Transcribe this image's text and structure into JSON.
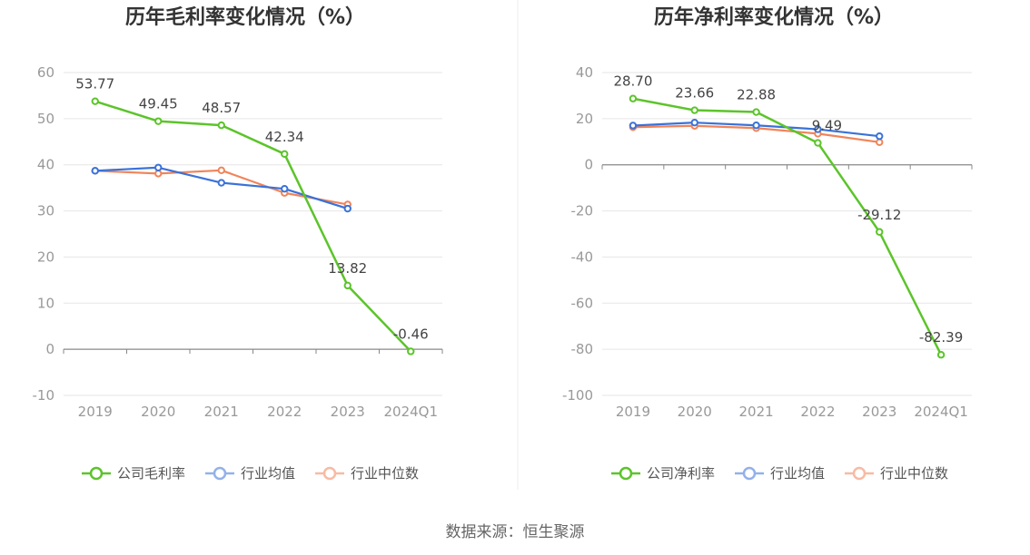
{
  "source": "数据来源：恒生聚源",
  "chart_data": [
    {
      "type": "line",
      "title": "历年毛利率变化情况（%）",
      "categories": [
        "2019",
        "2020",
        "2021",
        "2022",
        "2023",
        "2024Q1"
      ],
      "ylim": [
        -10,
        60
      ],
      "yticks": [
        60,
        50,
        40,
        30,
        20,
        10,
        0,
        -10
      ],
      "grid": true,
      "legend": "bottom",
      "series": [
        {
          "name": "公司毛利率",
          "color": "#5cc42a",
          "values": [
            53.77,
            49.45,
            48.57,
            42.34,
            13.82,
            -0.46
          ],
          "labels": [
            "53.77",
            "49.45",
            "48.57",
            "42.34",
            "13.82",
            "-0.46"
          ]
        },
        {
          "name": "行业均值",
          "color": "#3a72d8",
          "values": [
            38.7,
            39.4,
            36.1,
            34.8,
            30.5,
            null
          ]
        },
        {
          "name": "行业中位数",
          "color": "#f0845a",
          "values": [
            38.7,
            38.1,
            38.8,
            33.9,
            31.4,
            null
          ]
        }
      ]
    },
    {
      "type": "line",
      "title": "历年净利率变化情况（%）",
      "categories": [
        "2019",
        "2020",
        "2021",
        "2022",
        "2023",
        "2024Q1"
      ],
      "ylim": [
        -100,
        40
      ],
      "yticks": [
        40,
        20,
        0,
        -20,
        -40,
        -60,
        -80,
        -100
      ],
      "grid": true,
      "legend": "bottom",
      "series": [
        {
          "name": "公司净利率",
          "color": "#5cc42a",
          "values": [
            28.7,
            23.66,
            22.88,
            9.49,
            -29.12,
            -82.39
          ],
          "labels": [
            "28.70",
            "23.66",
            "22.88",
            "9.49",
            "-29.12",
            "-82.39"
          ]
        },
        {
          "name": "行业均值",
          "color": "#3a72d8",
          "values": [
            17.0,
            18.3,
            17.1,
            15.4,
            12.4,
            null
          ]
        },
        {
          "name": "行业中位数",
          "color": "#f0845a",
          "values": [
            16.3,
            16.9,
            15.9,
            13.5,
            9.8,
            null
          ]
        }
      ]
    }
  ]
}
